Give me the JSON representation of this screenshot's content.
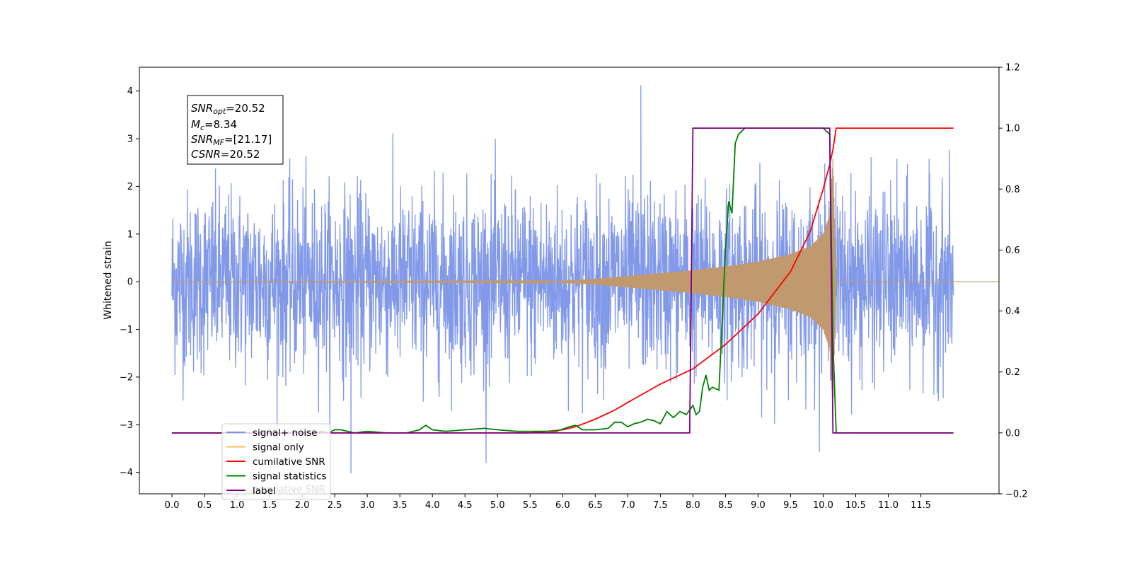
{
  "chart_data": {
    "type": "line",
    "ylabel": "Whitened strain",
    "xlim": [
      -0.5,
      12.7
    ],
    "ylim": [
      -4.45,
      4.5
    ],
    "ylim_right": [
      -0.2,
      1.2
    ],
    "x_ticks": [
      "0.0",
      "0.5",
      "1.0",
      "1.5",
      "2.0",
      "2.5",
      "3.0",
      "3.5",
      "4.0",
      "4.5",
      "5.0",
      "5.5",
      "6.0",
      "6.5",
      "7.0",
      "7.5",
      "8.0",
      "8.5",
      "9.0",
      "9.5",
      "10.0",
      "10.5",
      "11.0",
      "11.5"
    ],
    "y_ticks_left": [
      "−4",
      "−3",
      "−2",
      "−1",
      "0",
      "1",
      "2",
      "3",
      "4"
    ],
    "y_ticks_right": [
      "−0.2",
      "0.0",
      "0.2",
      "0.4",
      "0.6",
      "0.8",
      "1.0",
      "1.2"
    ],
    "info_box": {
      "snr_opt_base": "SNR",
      "snr_opt_sub": "opt",
      "snr_opt_value": "=20.52",
      "mc_base": "M",
      "mc_sub": "c",
      "mc_value": "=8.34",
      "snr_mf_base": "SNR",
      "snr_mf_sub": "MF",
      "snr_mf_value": "=[21.17]",
      "csnr_base": "CSNR",
      "csnr_value": "=20.52"
    },
    "legend": {
      "location": "lower-left",
      "entries": [
        {
          "label": "signal+ noise",
          "color": "#7b93e8"
        },
        {
          "label": "signal only",
          "color": "#ffbf5e"
        },
        {
          "label": "cumilative SNR",
          "color": "#ff0000"
        },
        {
          "label": "signal statistics",
          "color": "#008000"
        },
        {
          "label": "label",
          "color": "#800080"
        }
      ],
      "ghost_text": "cumilative SNR"
    },
    "series": [
      {
        "name": "signal+ noise",
        "axis": "left",
        "color": "#7b93e8",
        "x_range": [
          0.0,
          12.0
        ],
        "noise_std": 0.95,
        "peak_max": 4.12,
        "peak_max_x": 7.2,
        "peak_min": -4.02,
        "peak_min_x": 2.75
      },
      {
        "name": "signal only",
        "axis": "left",
        "color": "#c09a6e",
        "envelope": {
          "x": [
            0.0,
            5.8,
            6.5,
            7.0,
            7.5,
            8.0,
            8.5,
            9.0,
            9.5,
            9.8,
            10.0,
            10.1,
            10.15,
            10.2
          ],
          "amp": [
            0.0,
            0.01,
            0.06,
            0.12,
            0.18,
            0.24,
            0.32,
            0.42,
            0.58,
            0.74,
            1.0,
            1.4,
            2.6,
            0.0
          ]
        }
      },
      {
        "name": "cumilative SNR",
        "axis": "right",
        "color": "#ff0000",
        "x": [
          0.0,
          5.5,
          6.0,
          6.2,
          6.5,
          6.8,
          7.0,
          7.5,
          8.0,
          8.5,
          9.0,
          9.5,
          9.8,
          10.0,
          10.1,
          10.15,
          10.2,
          12.0
        ],
        "y": [
          0.0,
          0.0,
          0.01,
          0.02,
          0.045,
          0.075,
          0.1,
          0.16,
          0.21,
          0.29,
          0.39,
          0.53,
          0.66,
          0.8,
          0.88,
          0.93,
          1.0,
          1.0
        ]
      },
      {
        "name": "signal statistics",
        "axis": "right",
        "color": "#008000",
        "x": [
          0.0,
          2.2,
          2.3,
          2.4,
          2.5,
          2.6,
          2.8,
          3.0,
          3.3,
          3.6,
          3.7,
          3.8,
          3.9,
          4.0,
          4.2,
          4.5,
          4.8,
          5.0,
          5.3,
          5.6,
          5.9,
          6.1,
          6.2,
          6.3,
          6.5,
          6.7,
          6.8,
          6.9,
          7.0,
          7.1,
          7.2,
          7.3,
          7.4,
          7.5,
          7.6,
          7.7,
          7.8,
          7.9,
          8.0,
          8.05,
          8.1,
          8.15,
          8.2,
          8.25,
          8.3,
          8.4,
          8.5,
          8.55,
          8.6,
          8.65,
          8.7,
          8.8,
          9.0,
          9.2,
          9.5,
          10.0,
          10.1,
          10.15,
          10.2,
          10.25,
          10.3,
          12.0
        ],
        "y": [
          0.0,
          0.0,
          0.005,
          0.0,
          0.01,
          0.01,
          0.0,
          0.005,
          0.0,
          0.0,
          0.005,
          0.01,
          0.025,
          0.01,
          0.005,
          0.01,
          0.015,
          0.01,
          0.005,
          0.005,
          0.005,
          0.02,
          0.025,
          0.01,
          0.01,
          0.015,
          0.035,
          0.035,
          0.02,
          0.03,
          0.035,
          0.045,
          0.04,
          0.03,
          0.07,
          0.05,
          0.07,
          0.06,
          0.09,
          0.06,
          0.07,
          0.15,
          0.19,
          0.14,
          0.15,
          0.14,
          0.6,
          0.76,
          0.72,
          0.95,
          0.98,
          1.0,
          1.0,
          1.0,
          1.0,
          1.0,
          0.98,
          0.3,
          0.0,
          0.0,
          0.0,
          0.0
        ]
      },
      {
        "name": "label",
        "axis": "right",
        "color": "#800080",
        "x": [
          0.0,
          7.95,
          8.0,
          10.1,
          10.15,
          12.0
        ],
        "y": [
          0.0,
          0.0,
          1.0,
          1.0,
          0.0,
          0.0
        ]
      }
    ]
  }
}
